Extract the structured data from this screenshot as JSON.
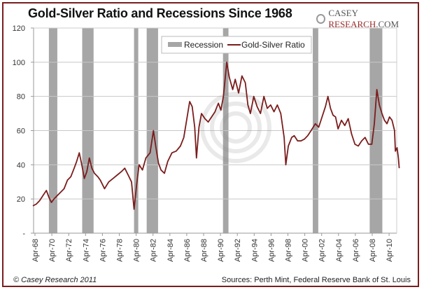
{
  "chart_data": {
    "type": "line",
    "title": "Gold-Silver Ratio and Recessions Since 1968",
    "xlabel": "",
    "ylabel": "",
    "ylim": [
      0,
      120
    ],
    "yticks": [
      0,
      20,
      40,
      60,
      80,
      100,
      120
    ],
    "ytick_labels": [
      "-",
      "20",
      "40",
      "60",
      "80",
      "100",
      "120"
    ],
    "xlim": [
      1968.0,
      2011.6
    ],
    "xticks": [
      1968.25,
      1970.25,
      1972.25,
      1974.25,
      1976.25,
      1978.25,
      1980.25,
      1982.25,
      1984.25,
      1986.25,
      1988.25,
      1990.25,
      1992.25,
      1994.25,
      1996.25,
      1998.25,
      2000.25,
      2002.25,
      2004.25,
      2006.25,
      2008.25,
      2010.25
    ],
    "xtick_labels": [
      "Apr-68",
      "Apr-70",
      "Apr-72",
      "Apr-74",
      "Apr-76",
      "Apr-78",
      "Apr-80",
      "Apr-82",
      "Apr-84",
      "Apr-86",
      "Apr-88",
      "Apr-90",
      "Apr-92",
      "Apr-94",
      "Apr-96",
      "Apr-98",
      "Apr-00",
      "Apr-02",
      "Apr-04",
      "Apr-06",
      "Apr-08",
      "Apr-10"
    ],
    "grid": "horizontal",
    "legend": {
      "position": "top-center",
      "entries": [
        "Recession",
        "Gold-Silver Ratio"
      ]
    },
    "recessions": [
      {
        "start": 1969.9,
        "end": 1970.9
      },
      {
        "start": 1973.85,
        "end": 1975.2
      },
      {
        "start": 1980.0,
        "end": 1980.5
      },
      {
        "start": 1981.5,
        "end": 1982.85
      },
      {
        "start": 1990.55,
        "end": 1991.2
      },
      {
        "start": 2001.2,
        "end": 2001.85
      },
      {
        "start": 2007.95,
        "end": 2009.45
      }
    ],
    "series": [
      {
        "name": "Gold-Silver Ratio",
        "color": "#7b1c1c",
        "points": [
          [
            1968.0,
            16
          ],
          [
            1968.4,
            17
          ],
          [
            1968.8,
            19
          ],
          [
            1969.2,
            22
          ],
          [
            1969.6,
            25
          ],
          [
            1969.9,
            21
          ],
          [
            1970.2,
            18
          ],
          [
            1970.5,
            20
          ],
          [
            1970.9,
            22
          ],
          [
            1971.3,
            24
          ],
          [
            1971.7,
            26
          ],
          [
            1972.1,
            31
          ],
          [
            1972.5,
            33
          ],
          [
            1972.9,
            38
          ],
          [
            1973.2,
            42
          ],
          [
            1973.5,
            47
          ],
          [
            1973.8,
            40
          ],
          [
            1974.1,
            32
          ],
          [
            1974.4,
            36
          ],
          [
            1974.7,
            44
          ],
          [
            1975.0,
            38
          ],
          [
            1975.3,
            35
          ],
          [
            1975.7,
            33
          ],
          [
            1976.0,
            31
          ],
          [
            1976.5,
            26
          ],
          [
            1977.0,
            30
          ],
          [
            1977.5,
            32
          ],
          [
            1978.0,
            34
          ],
          [
            1978.5,
            36
          ],
          [
            1978.9,
            38
          ],
          [
            1979.3,
            34
          ],
          [
            1979.7,
            30
          ],
          [
            1980.0,
            14
          ],
          [
            1980.3,
            28
          ],
          [
            1980.6,
            40
          ],
          [
            1981.0,
            37
          ],
          [
            1981.4,
            44
          ],
          [
            1981.9,
            47
          ],
          [
            1982.3,
            60
          ],
          [
            1982.6,
            50
          ],
          [
            1982.9,
            41
          ],
          [
            1983.2,
            37
          ],
          [
            1983.6,
            35
          ],
          [
            1984.0,
            42
          ],
          [
            1984.5,
            47
          ],
          [
            1985.0,
            48
          ],
          [
            1985.5,
            51
          ],
          [
            1985.9,
            56
          ],
          [
            1986.3,
            68
          ],
          [
            1986.6,
            77
          ],
          [
            1986.9,
            74
          ],
          [
            1987.2,
            62
          ],
          [
            1987.4,
            44
          ],
          [
            1987.7,
            62
          ],
          [
            1988.0,
            70
          ],
          [
            1988.4,
            67
          ],
          [
            1988.8,
            65
          ],
          [
            1989.2,
            68
          ],
          [
            1989.6,
            71
          ],
          [
            1990.0,
            76
          ],
          [
            1990.3,
            72
          ],
          [
            1990.6,
            80
          ],
          [
            1990.8,
            90
          ],
          [
            1991.0,
            100
          ],
          [
            1991.3,
            91
          ],
          [
            1991.7,
            84
          ],
          [
            1992.0,
            90
          ],
          [
            1992.4,
            82
          ],
          [
            1992.8,
            92
          ],
          [
            1993.2,
            88
          ],
          [
            1993.5,
            75
          ],
          [
            1993.8,
            70
          ],
          [
            1994.2,
            80
          ],
          [
            1994.6,
            74
          ],
          [
            1995.0,
            70
          ],
          [
            1995.4,
            80
          ],
          [
            1995.8,
            73
          ],
          [
            1996.2,
            75
          ],
          [
            1996.6,
            71
          ],
          [
            1997.0,
            75
          ],
          [
            1997.4,
            70
          ],
          [
            1997.8,
            56
          ],
          [
            1998.0,
            40
          ],
          [
            1998.3,
            51
          ],
          [
            1998.7,
            56
          ],
          [
            1999.0,
            57
          ],
          [
            1999.4,
            54
          ],
          [
            1999.8,
            54
          ],
          [
            2000.2,
            55
          ],
          [
            2000.6,
            57
          ],
          [
            2001.0,
            60
          ],
          [
            2001.5,
            64
          ],
          [
            2001.9,
            62
          ],
          [
            2002.3,
            68
          ],
          [
            2002.7,
            74
          ],
          [
            2003.0,
            80
          ],
          [
            2003.3,
            73
          ],
          [
            2003.6,
            69
          ],
          [
            2003.9,
            68
          ],
          [
            2004.2,
            61
          ],
          [
            2004.6,
            66
          ],
          [
            2005.0,
            63
          ],
          [
            2005.4,
            67
          ],
          [
            2005.8,
            58
          ],
          [
            2006.2,
            52
          ],
          [
            2006.6,
            51
          ],
          [
            2007.0,
            54
          ],
          [
            2007.4,
            56
          ],
          [
            2007.8,
            52
          ],
          [
            2008.2,
            52
          ],
          [
            2008.5,
            64
          ],
          [
            2008.8,
            84
          ],
          [
            2009.1,
            75
          ],
          [
            2009.4,
            70
          ],
          [
            2009.7,
            66
          ],
          [
            2010.0,
            64
          ],
          [
            2010.3,
            68
          ],
          [
            2010.6,
            66
          ],
          [
            2010.9,
            60
          ],
          [
            2011.0,
            48
          ],
          [
            2011.2,
            50
          ],
          [
            2011.35,
            44
          ],
          [
            2011.45,
            38
          ]
        ]
      }
    ]
  },
  "header": {
    "title": "Gold-Silver Ratio and Recessions Since 1968",
    "logo_text_1": "CASEY ",
    "logo_text_2": "RESEARCH",
    "logo_text_3": ".COM"
  },
  "footer": {
    "copyright": "© Casey Research 2011",
    "sources": "Sources: Perth Mint, Federal Reserve Bank of St. Louis"
  },
  "legend": {
    "recession_label": "Recession",
    "ratio_label": "Gold-Silver Ratio"
  }
}
